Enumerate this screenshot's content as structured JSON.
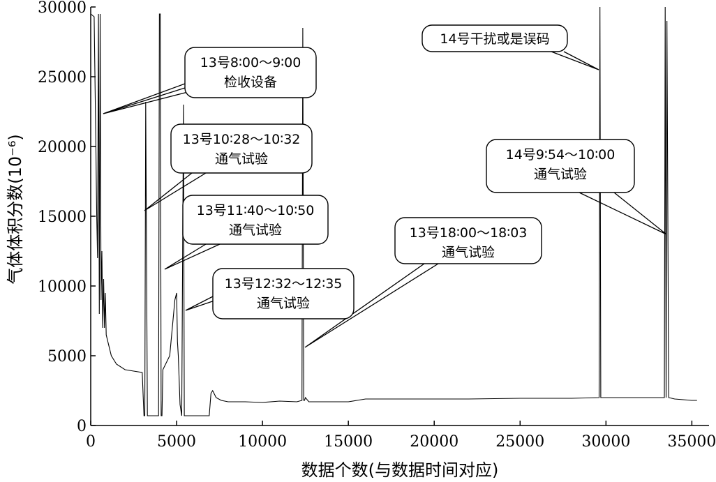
{
  "chart_data": {
    "type": "line",
    "xlabel": "数据个数(与数据时间对应)",
    "ylabel": "气体体积分数(10⁻⁶)",
    "xlim": [
      0,
      36000
    ],
    "ylim": [
      0,
      30000
    ],
    "x_ticks": [
      0,
      5000,
      10000,
      15000,
      20000,
      25000,
      30000,
      35000
    ],
    "y_ticks": [
      0,
      5000,
      10000,
      15000,
      20000,
      25000,
      30000
    ],
    "grid": false,
    "legend": "none",
    "series": [
      {
        "x": [
          0,
          200,
          300,
          350,
          400,
          450,
          500,
          550,
          600,
          650,
          700,
          750,
          800,
          850,
          900,
          1000,
          1200,
          1500,
          2000,
          2500,
          3000,
          3100,
          3150,
          3200,
          3300,
          3500,
          3800,
          3950,
          4000,
          4050,
          4100,
          4150,
          4200,
          4600,
          4900,
          5000,
          5050,
          5100,
          5200,
          5300,
          5400,
          5450,
          5500,
          5600,
          6000,
          6500,
          6900,
          7000,
          7100,
          7300,
          7600,
          8000,
          9000,
          10000,
          11000,
          12000,
          12300,
          12350,
          12400,
          12450,
          12500,
          12700,
          13000,
          14000,
          15000,
          15500,
          16000,
          17000,
          18000,
          20000,
          22000,
          25000,
          28000,
          29600,
          29650,
          29700,
          30000,
          32000,
          33300,
          33400,
          33450,
          33500,
          33550,
          33650,
          34000,
          35000,
          35300
        ],
        "y": [
          29500,
          29300,
          20000,
          15000,
          12000,
          29500,
          8000,
          29500,
          9000,
          12500,
          7000,
          10500,
          7000,
          9500,
          6500,
          6000,
          5000,
          4400,
          4000,
          3900,
          3800,
          700,
          700,
          23200,
          700,
          700,
          700,
          700,
          29500,
          29500,
          700,
          700,
          4000,
          5000,
          9000,
          9500,
          6000,
          5000,
          1500,
          700,
          23000,
          700,
          700,
          700,
          700,
          700,
          700,
          2300,
          2500,
          2000,
          1800,
          1700,
          1700,
          1650,
          1750,
          1700,
          1800,
          28500,
          1800,
          1800,
          2000,
          1700,
          1700,
          1700,
          1700,
          1800,
          1900,
          1900,
          1900,
          1900,
          1900,
          1950,
          1950,
          2000,
          30000,
          2000,
          2000,
          2000,
          2000,
          2000,
          30000,
          2000,
          29000,
          2000,
          1900,
          1800,
          1800
        ]
      }
    ],
    "annotations": [
      {
        "line1": "13号8∶00～9∶00",
        "line2": "检收设备",
        "targets_x": [
          400,
          600
        ]
      },
      {
        "line1": "13号10∶28～10∶32",
        "line2": "通气试验",
        "targets_x": [
          3200
        ]
      },
      {
        "line1": "13号11∶40～10∶50",
        "line2": "通气试验",
        "targets_x": [
          4050
        ]
      },
      {
        "line1": "13号12∶32～12∶35",
        "line2": "通气试验",
        "targets_x": [
          5400
        ]
      },
      {
        "line1": "13号18∶00～18∶03",
        "line2": "通气试验",
        "targets_x": [
          12350
        ]
      },
      {
        "line1": "14号干扰或是误码",
        "line2": "",
        "targets_x": [
          29650
        ]
      },
      {
        "line1": "14号9∶54～10∶00",
        "line2": "通气试验",
        "targets_x": [
          33400
        ]
      }
    ]
  }
}
